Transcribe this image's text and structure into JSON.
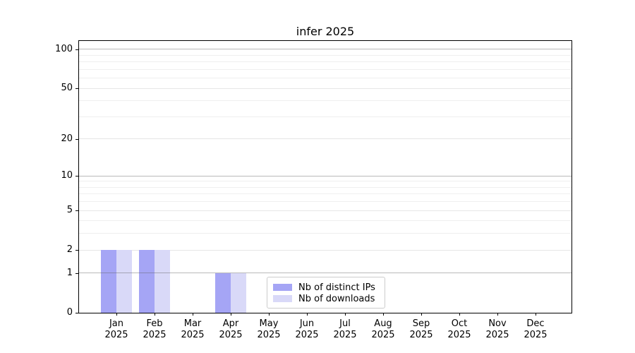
{
  "title": "infer 2025",
  "chart_data": {
    "type": "bar",
    "title": "infer 2025",
    "categories": [
      "Jan",
      "Feb",
      "Mar",
      "Apr",
      "May",
      "Jun",
      "Jul",
      "Aug",
      "Sep",
      "Oct",
      "Nov",
      "Dec"
    ],
    "year_label": "2025",
    "series": [
      {
        "name": "Nb of distinct IPs",
        "color": "#a5a5f5",
        "values": [
          2,
          2,
          0,
          1,
          0,
          0,
          0,
          0,
          0,
          0,
          0,
          0
        ]
      },
      {
        "name": "Nb of downloads",
        "color": "#d9d9f8",
        "values": [
          2,
          2,
          0,
          1,
          0,
          0,
          0,
          0,
          0,
          0,
          0,
          0
        ]
      }
    ],
    "xlabel": "",
    "ylabel": "",
    "yscale": "log1p",
    "ylim": [
      0,
      116
    ],
    "yticks": [
      0,
      1,
      2,
      5,
      10,
      20,
      50,
      100
    ],
    "grid": {
      "decade_lines": [
        1,
        10,
        100
      ],
      "sub_lines": [
        2,
        5,
        20,
        50
      ],
      "minor_lines": [
        3,
        4,
        6,
        7,
        8,
        9,
        30,
        40,
        60,
        70,
        80,
        90
      ]
    },
    "legend_position": "lower center",
    "legend_entries": [
      "Nb of distinct IPs",
      "Nb of downloads"
    ]
  }
}
